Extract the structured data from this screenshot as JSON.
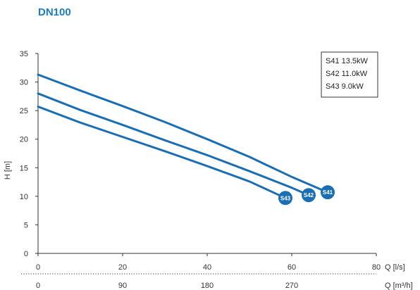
{
  "chart_data": {
    "type": "line",
    "title": "DN100",
    "xlabel": "Q [l/s]",
    "xlabel2": "Q [m³/h]",
    "ylabel": "H [m]",
    "xlim": [
      0,
      80
    ],
    "ylim": [
      0,
      35
    ],
    "xticks": [
      "0",
      "20",
      "40",
      "60",
      "80"
    ],
    "xticks2": [
      "0",
      "90",
      "180",
      "270"
    ],
    "xticks2_values_ls": [
      0,
      20,
      40,
      60
    ],
    "yticks": [
      "0",
      "5",
      "10",
      "15",
      "20",
      "25",
      "30",
      "35"
    ],
    "grid": false,
    "legend_position": "top-right",
    "legend": [
      "S41 13.5kW",
      "S42 11.0kW",
      "S43 9.0kW"
    ],
    "series": [
      {
        "name": "S41",
        "x": [
          0,
          10,
          20,
          30,
          40,
          50,
          60,
          68.5
        ],
        "y": [
          31.3,
          28.5,
          25.8,
          23.0,
          20.0,
          16.9,
          13.4,
          10.7
        ]
      },
      {
        "name": "S42",
        "x": [
          0,
          10,
          20,
          30,
          40,
          50,
          60,
          64
        ],
        "y": [
          28.0,
          25.1,
          22.5,
          19.8,
          17.2,
          14.4,
          11.5,
          10.2
        ]
      },
      {
        "name": "S43",
        "x": [
          0,
          10,
          20,
          30,
          40,
          50,
          58.5
        ],
        "y": [
          25.7,
          22.9,
          20.4,
          17.9,
          15.3,
          12.6,
          9.7
        ]
      }
    ],
    "colors": {
      "title": "#1a7dc0",
      "line": "#1a6fb4",
      "marker": "#1a6fb4",
      "axis": "#333333"
    }
  }
}
